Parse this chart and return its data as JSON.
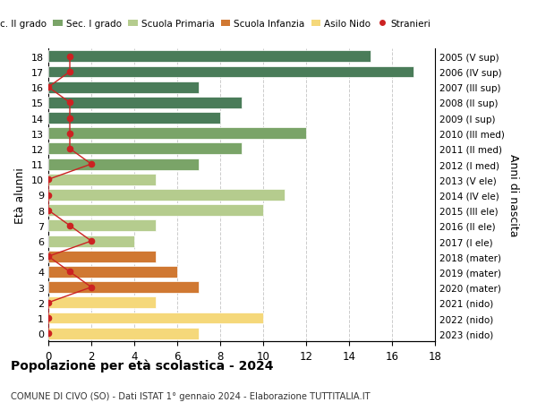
{
  "ages": [
    18,
    17,
    16,
    15,
    14,
    13,
    12,
    11,
    10,
    9,
    8,
    7,
    6,
    5,
    4,
    3,
    2,
    1,
    0
  ],
  "years": [
    "2005 (V sup)",
    "2006 (IV sup)",
    "2007 (III sup)",
    "2008 (II sup)",
    "2009 (I sup)",
    "2010 (III med)",
    "2011 (II med)",
    "2012 (I med)",
    "2013 (V ele)",
    "2014 (IV ele)",
    "2015 (III ele)",
    "2016 (II ele)",
    "2017 (I ele)",
    "2018 (mater)",
    "2019 (mater)",
    "2020 (mater)",
    "2021 (nido)",
    "2022 (nido)",
    "2023 (nido)"
  ],
  "values": [
    15,
    17,
    7,
    9,
    8,
    12,
    9,
    7,
    5,
    11,
    10,
    5,
    4,
    5,
    6,
    7,
    5,
    10,
    7
  ],
  "stranieri": [
    1,
    1,
    0,
    1,
    1,
    1,
    1,
    2,
    0,
    0,
    0,
    1,
    2,
    0,
    1,
    2,
    0,
    0,
    0
  ],
  "bar_colors_by_age": {
    "18": "#4a7c59",
    "17": "#4a7c59",
    "16": "#4a7c59",
    "15": "#4a7c59",
    "14": "#4a7c59",
    "13": "#7aa468",
    "12": "#7aa468",
    "11": "#7aa468",
    "10": "#b5cc8e",
    "9": "#b5cc8e",
    "8": "#b5cc8e",
    "7": "#b5cc8e",
    "6": "#b5cc8e",
    "5": "#d07832",
    "4": "#d07832",
    "3": "#d07832",
    "2": "#f5d87a",
    "1": "#f5d87a",
    "0": "#f5d87a"
  },
  "ylabel_left": "Età alunni",
  "ylabel_right": "Anni di nascita",
  "xlim": [
    0,
    18
  ],
  "title": "Popolazione per età scolastica - 2024",
  "subtitle": "COMUNE DI CIVO (SO) - Dati ISTAT 1° gennaio 2024 - Elaborazione TUTTITALIA.IT",
  "bg_color": "#ffffff",
  "grid_color": "#cccccc",
  "legend_labels": [
    "Sec. II grado",
    "Sec. I grado",
    "Scuola Primaria",
    "Scuola Infanzia",
    "Asilo Nido",
    "Stranieri"
  ],
  "legend_colors": [
    "#4a7c59",
    "#7aa468",
    "#b5cc8e",
    "#d07832",
    "#f5d87a",
    "#cc2222"
  ]
}
